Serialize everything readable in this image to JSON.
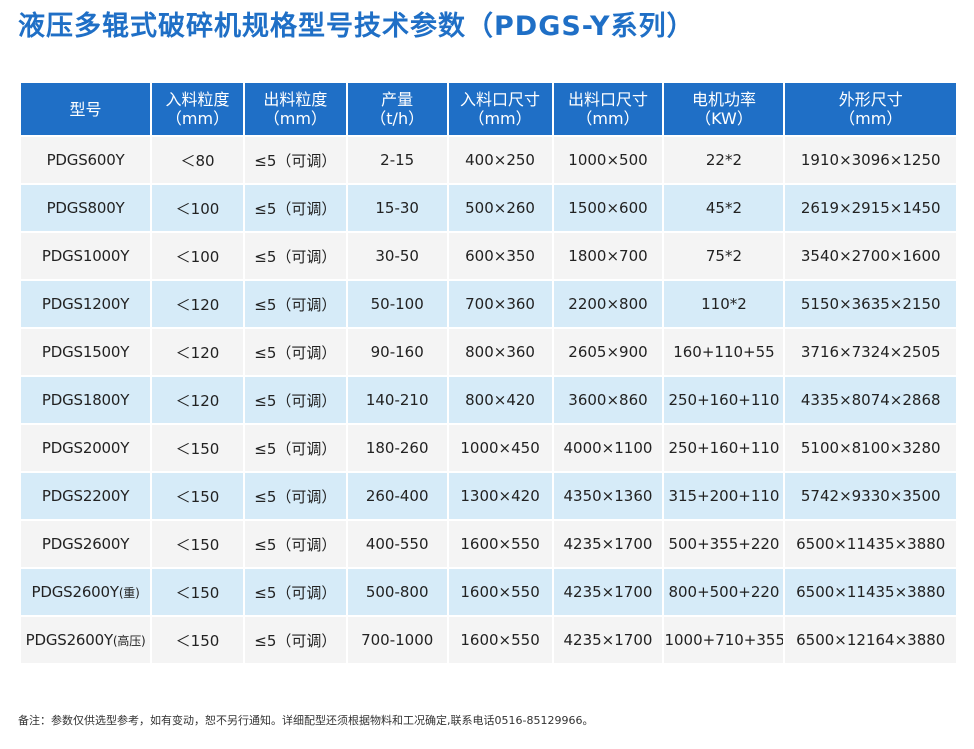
{
  "title": "液压多辊式破碎机规格型号技术参数（PDGS-Y系列）",
  "headers": [
    {
      "line1": "型号",
      "line2": ""
    },
    {
      "line1": "入料粒度",
      "line2": "（mm）"
    },
    {
      "line1": "出料粒度",
      "line2": "（mm）"
    },
    {
      "line1": "产量",
      "line2": "（t/h）"
    },
    {
      "line1": "入料口尺寸",
      "line2": "（mm）"
    },
    {
      "line1": "出料口尺寸",
      "line2": "（mm）"
    },
    {
      "line1": "电机功率",
      "line2": "（KW）"
    },
    {
      "line1": "外形尺寸",
      "line2": "（mm）"
    }
  ],
  "rows": [
    {
      "model": "PDGS600Y",
      "suffix": "",
      "in_size": "＜80",
      "out_size": "≤5（可调）",
      "capacity": "2-15",
      "inlet": "400×250",
      "outlet": "1000×500",
      "power": "22*2",
      "dims": "1910×3096×1250"
    },
    {
      "model": "PDGS800Y",
      "suffix": "",
      "in_size": "＜100",
      "out_size": "≤5（可调）",
      "capacity": "15-30",
      "inlet": "500×260",
      "outlet": "1500×600",
      "power": "45*2",
      "dims": "2619×2915×1450"
    },
    {
      "model": "PDGS1000Y",
      "suffix": "",
      "in_size": "＜100",
      "out_size": "≤5（可调）",
      "capacity": "30-50",
      "inlet": "600×350",
      "outlet": "1800×700",
      "power": "75*2",
      "dims": "3540×2700×1600"
    },
    {
      "model": "PDGS1200Y",
      "suffix": "",
      "in_size": "＜120",
      "out_size": "≤5（可调）",
      "capacity": "50-100",
      "inlet": "700×360",
      "outlet": "2200×800",
      "power": "110*2",
      "dims": "5150×3635×2150"
    },
    {
      "model": "PDGS1500Y",
      "suffix": "",
      "in_size": "＜120",
      "out_size": "≤5（可调）",
      "capacity": "90-160",
      "inlet": "800×360",
      "outlet": "2605×900",
      "power": "160+110+55",
      "dims": "3716×7324×2505"
    },
    {
      "model": "PDGS1800Y",
      "suffix": "",
      "in_size": "＜120",
      "out_size": "≤5（可调）",
      "capacity": "140-210",
      "inlet": "800×420",
      "outlet": "3600×860",
      "power": "250+160+110",
      "dims": "4335×8074×2868"
    },
    {
      "model": "PDGS2000Y",
      "suffix": "",
      "in_size": "＜150",
      "out_size": "≤5（可调）",
      "capacity": "180-260",
      "inlet": "1000×450",
      "outlet": "4000×1100",
      "power": "250+160+110",
      "dims": "5100×8100×3280"
    },
    {
      "model": "PDGS2200Y",
      "suffix": "",
      "in_size": "＜150",
      "out_size": "≤5（可调）",
      "capacity": "260-400",
      "inlet": "1300×420",
      "outlet": "4350×1360",
      "power": "315+200+110",
      "dims": "5742×9330×3500"
    },
    {
      "model": "PDGS2600Y",
      "suffix": "",
      "in_size": "＜150",
      "out_size": "≤5（可调）",
      "capacity": "400-550",
      "inlet": "1600×550",
      "outlet": "4235×1700",
      "power": "500+355+220",
      "dims": "6500×11435×3880"
    },
    {
      "model": "PDGS2600Y",
      "suffix": "(重)",
      "in_size": "＜150",
      "out_size": "≤5（可调）",
      "capacity": "500-800",
      "inlet": "1600×550",
      "outlet": "4235×1700",
      "power": "800+500+220",
      "dims": "6500×11435×3880"
    },
    {
      "model": "PDGS2600Y",
      "suffix": "(高压)",
      "in_size": "＜150",
      "out_size": "≤5（可调）",
      "capacity": "700-1000",
      "inlet": "1600×550",
      "outlet": "4235×1700",
      "power": "1000+710+355",
      "dims": "6500×12164×3880"
    }
  ],
  "note": "备注：参数仅供选型参考，如有变动，恕不另行通知。详细配型还须根据物料和工况确定,联系电话0516-85129966。",
  "colors": {
    "header_bg": "#1f6fc6",
    "title": "#1f6fc6",
    "row_odd": "#f4f4f4",
    "row_even": "#d6ebf8"
  }
}
